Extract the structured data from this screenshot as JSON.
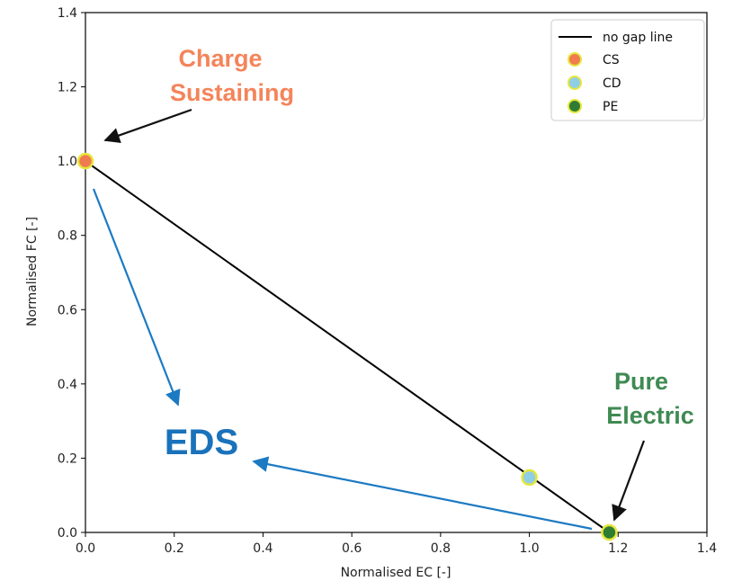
{
  "chart_data": {
    "type": "scatter",
    "xlabel": "Normalised EC [-]",
    "ylabel": "Normalised FC [-]",
    "xlim": [
      0.0,
      1.4
    ],
    "ylim": [
      0.0,
      1.4
    ],
    "xticks": [
      "0.0",
      "0.2",
      "0.4",
      "0.6",
      "0.8",
      "1.0",
      "1.2",
      "1.4"
    ],
    "yticks": [
      "0.0",
      "0.2",
      "0.4",
      "0.6",
      "0.8",
      "1.0",
      "1.2",
      "1.4"
    ],
    "grid": false,
    "legend_position": "top-right",
    "line": {
      "name": "no gap line",
      "color": "#000000",
      "points": [
        [
          0.0,
          1.0
        ],
        [
          1.18,
          0.0
        ]
      ]
    },
    "series": [
      {
        "name": "CS",
        "color": "#f07b4f",
        "edge": "#e6e63c",
        "points": [
          [
            0.0,
            1.0
          ]
        ]
      },
      {
        "name": "CD",
        "color": "#8ecfe6",
        "edge": "#e6e63c",
        "points": [
          [
            1.0,
            0.148
          ]
        ]
      },
      {
        "name": "PE",
        "color": "#2e7d32",
        "edge": "#e6e63c",
        "points": [
          [
            1.18,
            0.0
          ]
        ]
      }
    ],
    "annotations": {
      "cs": {
        "lines": [
          "Charge",
          "Sustaining"
        ],
        "color": "#f4845a"
      },
      "pe": {
        "lines": [
          "Pure",
          "Electric"
        ],
        "color": "#3f8a52"
      },
      "eds": {
        "text": "EDS",
        "color": "#1a72bb"
      }
    },
    "arrow_colors": {
      "black": "#111111",
      "blue": "#1c7ac3"
    }
  }
}
